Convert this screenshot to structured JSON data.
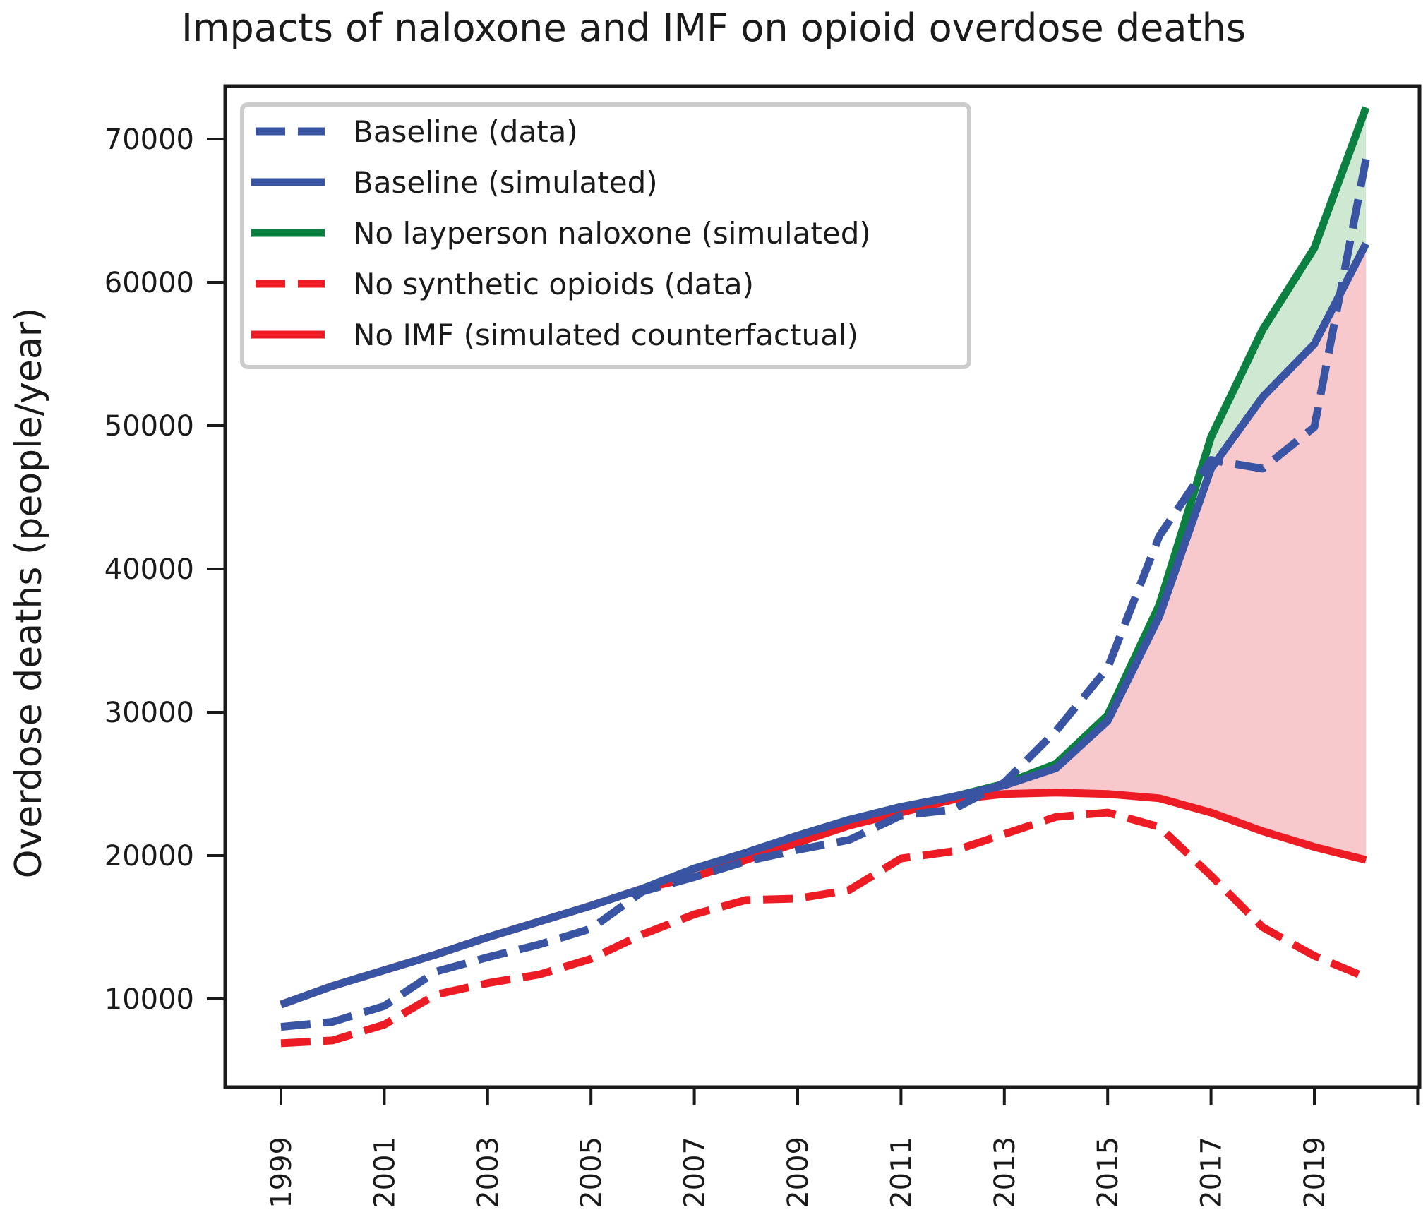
{
  "chart_data": {
    "type": "line",
    "title": "Impacts of naloxone and IMF on opioid overdose deaths",
    "xlabel": "",
    "ylabel": "Overdose deaths (people/year)",
    "xlim": [
      1998.5,
      2021.1
    ],
    "ylim": [
      4000,
      74500
    ],
    "grid": false,
    "legend_position": "top-left",
    "x_ticks": [
      1999,
      2001,
      2003,
      2005,
      2007,
      2009,
      2011,
      2013,
      2015,
      2017,
      2019,
      2021
    ],
    "x_tick_labels": [
      "1999",
      "2001",
      "2003",
      "2005",
      "2007",
      "2009",
      "2011",
      "2013",
      "2015",
      "2017",
      "2019",
      ""
    ],
    "y_ticks": [
      10000,
      20000,
      30000,
      40000,
      50000,
      60000,
      70000
    ],
    "y_tick_labels": [
      "10000",
      "20000",
      "30000",
      "40000",
      "50000",
      "60000",
      "70000"
    ],
    "x": [
      1999,
      2000,
      2001,
      2002,
      2003,
      2004,
      2005,
      2006,
      2007,
      2008,
      2009,
      2010,
      2011,
      2012,
      2013,
      2014,
      2015,
      2016,
      2017,
      2018,
      2019,
      2020
    ],
    "series": [
      {
        "name": "Baseline (data)",
        "color": "#3a54a4",
        "style": "dashed",
        "values": [
          8050,
          8400,
          9500,
          11900,
          12900,
          13800,
          14900,
          17500,
          18500,
          19600,
          20400,
          21100,
          22800,
          23200,
          25100,
          28700,
          33100,
          42300,
          47600,
          47000,
          49900,
          68600
        ]
      },
      {
        "name": "Baseline (simulated)",
        "color": "#3a54a4",
        "style": "solid",
        "values": [
          9600,
          10900,
          12000,
          13100,
          14300,
          15400,
          16500,
          17700,
          19100,
          20200,
          21400,
          22500,
          23400,
          24100,
          24900,
          26100,
          29400,
          36700,
          47000,
          52000,
          55700,
          62700
        ]
      },
      {
        "name": "No layperson naloxone (simulated)",
        "color": "#0c8040",
        "style": "solid",
        "values": [
          9600,
          10900,
          12000,
          13100,
          14300,
          15400,
          16500,
          17700,
          19100,
          20200,
          21400,
          22500,
          23400,
          24100,
          25000,
          26400,
          29800,
          37500,
          49200,
          56700,
          62400,
          72200
        ]
      },
      {
        "name": "No synthetic opioids (data)",
        "color": "#ed1c24",
        "style": "dashed",
        "values": [
          6900,
          7100,
          8200,
          10300,
          11100,
          11700,
          12800,
          14500,
          15900,
          16900,
          17000,
          17600,
          19800,
          20300,
          21500,
          22700,
          23000,
          22000,
          18600,
          15000,
          13000,
          11500
        ]
      },
      {
        "name": "No IMF (simulated counterfactual)",
        "color": "#ed1c24",
        "style": "solid",
        "values": [
          9600,
          10900,
          12000,
          13100,
          14300,
          15400,
          16500,
          17700,
          18500,
          19700,
          20900,
          22100,
          23000,
          23900,
          24300,
          24400,
          24300,
          24000,
          23000,
          21700,
          20600,
          19700
        ]
      }
    ],
    "fills": [
      {
        "name": "naloxone-effect-region",
        "between": [
          "Baseline (simulated)",
          "No layperson naloxone (simulated)"
        ],
        "color": "#cfe8d1"
      },
      {
        "name": "imf-effect-region",
        "between": [
          "No IMF (simulated counterfactual)",
          "Baseline (simulated)"
        ],
        "color": "#f8c9cc"
      }
    ]
  }
}
